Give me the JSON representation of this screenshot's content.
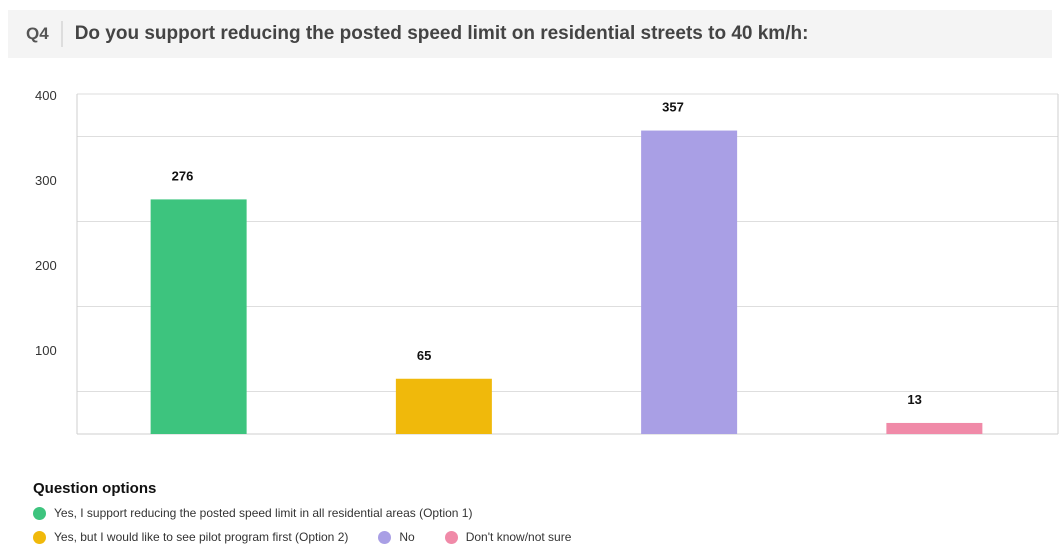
{
  "question": {
    "number": "Q4",
    "text": "Do you support reducing the posted speed limit on residential streets to 40 km/h:"
  },
  "chart_data": {
    "type": "bar",
    "categories": [
      "Yes, I support reducing the posted speed limit in all residential areas (Option 1)",
      "Yes, but I would like to see pilot program first (Option 2)",
      "No",
      "Don't know/not sure"
    ],
    "values": [
      276,
      65,
      357,
      13
    ],
    "colors": [
      "#3dc47e",
      "#f0b90b",
      "#a99fe5",
      "#f08aa8"
    ],
    "yticks": [
      100,
      200,
      300,
      400
    ],
    "ylim": [
      0,
      400
    ],
    "grid": true,
    "legend_position": "bottom"
  },
  "legend": {
    "title": "Question options",
    "items": [
      {
        "label": "Yes, I support reducing the posted speed limit in all residential areas (Option 1)",
        "color": "#3dc47e"
      },
      {
        "label": "Yes, but I would like to see pilot program first (Option 2)",
        "color": "#f0b90b"
      },
      {
        "label": "No",
        "color": "#a99fe5"
      },
      {
        "label": "Don't know/not sure",
        "color": "#f08aa8"
      }
    ]
  }
}
